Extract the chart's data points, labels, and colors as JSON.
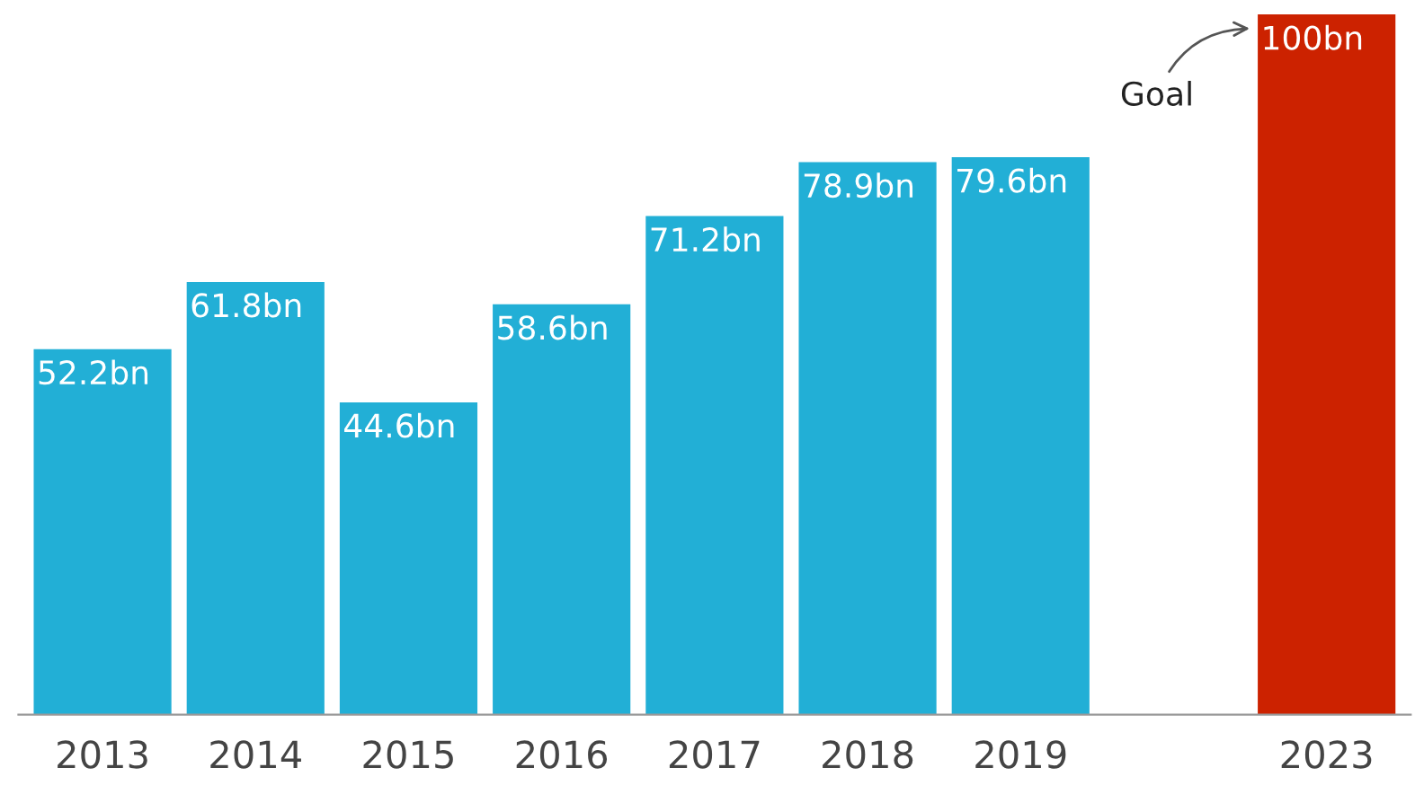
{
  "chart_data": {
    "type": "bar",
    "categories": [
      "2013",
      "2014",
      "2015",
      "2016",
      "2017",
      "2018",
      "2019",
      null,
      "2023"
    ],
    "values": [
      52.2,
      61.8,
      44.6,
      58.6,
      71.2,
      78.9,
      79.6,
      null,
      100
    ],
    "colors": [
      "#22afd6",
      "#22afd6",
      "#22afd6",
      "#22afd6",
      "#22afd6",
      "#22afd6",
      "#22afd6",
      "#22afd6",
      "#cc2200"
    ],
    "value_labels": [
      "52.2bn",
      "61.8bn",
      "44.6bn",
      "58.6bn",
      "71.2bn",
      "78.9bn",
      "79.6bn",
      null,
      "100bn"
    ],
    "ylim": [
      0,
      100
    ],
    "tick_labels": "x",
    "grid": false,
    "annotations": [
      "Goal"
    ]
  }
}
